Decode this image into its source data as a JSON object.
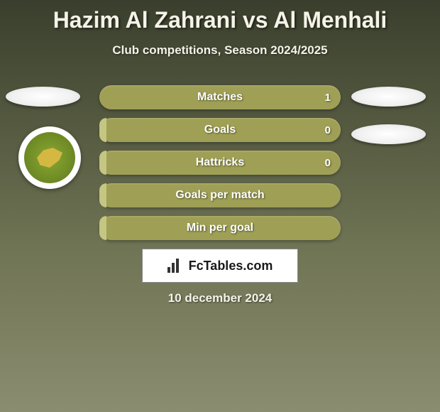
{
  "title": "Hazim Al Zahrani vs Al Menhali",
  "subtitle": "Club competitions, Season 2024/2025",
  "date": "10 december 2024",
  "branding": {
    "text": "FcTables.com"
  },
  "colors": {
    "title": "#f5f3e8",
    "bar_bg": "#9fa055",
    "bar_fill": "#c4c682",
    "badge_outer": "#ffffff",
    "badge_inner_start": "#8aa834",
    "badge_inner_end": "#5f7a1c",
    "badge_bird": "#d4b842"
  },
  "stats": [
    {
      "label": "Matches",
      "value": "1",
      "fill_percent": 0
    },
    {
      "label": "Goals",
      "value": "0",
      "fill_percent": 3
    },
    {
      "label": "Hattricks",
      "value": "0",
      "fill_percent": 3
    },
    {
      "label": "Goals per match",
      "value": "",
      "fill_percent": 3
    },
    {
      "label": "Min per goal",
      "value": "",
      "fill_percent": 3
    }
  ]
}
